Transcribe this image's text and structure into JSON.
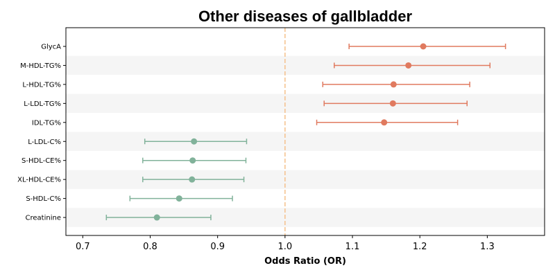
{
  "chart_data": {
    "type": "forest",
    "title": "Other diseases of gallbladder",
    "xlabel": "Odds Ratio (OR)",
    "ylabel": "",
    "xlim": [
      0.675,
      1.385
    ],
    "x_ticks": [
      0.7,
      0.8,
      0.9,
      1.0,
      1.1,
      1.2,
      1.3
    ],
    "x_tick_labels": [
      "0.7",
      "0.8",
      "0.9",
      "1.0",
      "1.1",
      "1.2",
      "1.3"
    ],
    "reference_line": {
      "value": 1.0,
      "style": "dashed",
      "color": "#f5c08a"
    },
    "grid": false,
    "alternating_row_shading": true,
    "colors": {
      "risk": "#e07a5f",
      "protective": "#81b29a",
      "shade": "#f5f5f5"
    },
    "rows": [
      {
        "label": "GlycA",
        "or": 1.205,
        "lower": 1.095,
        "upper": 1.327,
        "group": "risk"
      },
      {
        "label": "M-HDL-TG%",
        "or": 1.183,
        "lower": 1.073,
        "upper": 1.304,
        "group": "risk"
      },
      {
        "label": "L-HDL-TG%",
        "or": 1.161,
        "lower": 1.056,
        "upper": 1.274,
        "group": "risk"
      },
      {
        "label": "L-LDL-TG%",
        "or": 1.16,
        "lower": 1.058,
        "upper": 1.27,
        "group": "risk"
      },
      {
        "label": "IDL-TG%",
        "or": 1.147,
        "lower": 1.047,
        "upper": 1.256,
        "group": "risk"
      },
      {
        "label": "L-LDL-C%",
        "or": 0.865,
        "lower": 0.792,
        "upper": 0.943,
        "group": "protective"
      },
      {
        "label": "S-HDL-CE%",
        "or": 0.863,
        "lower": 0.789,
        "upper": 0.942,
        "group": "protective"
      },
      {
        "label": "XL-HDL-CE%",
        "or": 0.862,
        "lower": 0.789,
        "upper": 0.939,
        "group": "protective"
      },
      {
        "label": "S-HDL-C%",
        "or": 0.843,
        "lower": 0.77,
        "upper": 0.922,
        "group": "protective"
      },
      {
        "label": "Creatinine",
        "or": 0.81,
        "lower": 0.735,
        "upper": 0.89,
        "group": "protective"
      }
    ]
  }
}
